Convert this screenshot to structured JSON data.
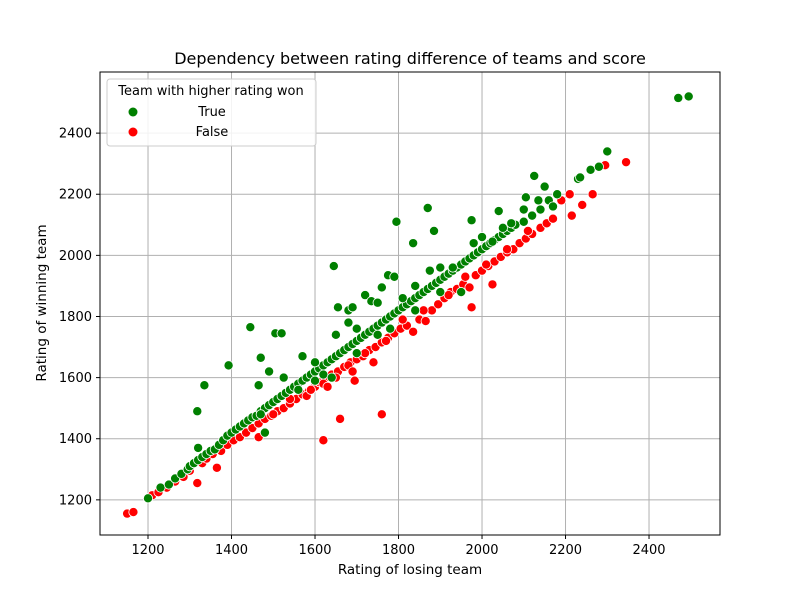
{
  "chart_data": {
    "type": "scatter",
    "title": "Dependency between rating difference of teams and score",
    "xlabel": "Rating of losing team",
    "ylabel": "Rating of winning team",
    "xlim": [
      1085,
      2570
    ],
    "ylim": [
      1085,
      2600
    ],
    "xticks": [
      1200,
      1400,
      1600,
      1800,
      2000,
      2200,
      2400
    ],
    "yticks": [
      1200,
      1400,
      1600,
      1800,
      2000,
      2200,
      2400
    ],
    "grid": true,
    "legend": {
      "title": "Team with higher rating won",
      "placement": "top-left"
    },
    "series": [
      {
        "name": "True",
        "color": "#008000",
        "points": [
          [
            1200,
            1205
          ],
          [
            1230,
            1240
          ],
          [
            1250,
            1250
          ],
          [
            1265,
            1270
          ],
          [
            1280,
            1285
          ],
          [
            1295,
            1300
          ],
          [
            1300,
            1310
          ],
          [
            1310,
            1320
          ],
          [
            1320,
            1330
          ],
          [
            1320,
            1370
          ],
          [
            1330,
            1340
          ],
          [
            1340,
            1350
          ],
          [
            1350,
            1360
          ],
          [
            1360,
            1365
          ],
          [
            1370,
            1380
          ],
          [
            1380,
            1395
          ],
          [
            1390,
            1410
          ],
          [
            1400,
            1420
          ],
          [
            1410,
            1430
          ],
          [
            1420,
            1440
          ],
          [
            1430,
            1450
          ],
          [
            1440,
            1460
          ],
          [
            1450,
            1470
          ],
          [
            1460,
            1475
          ],
          [
            1470,
            1490
          ],
          [
            1480,
            1500
          ],
          [
            1490,
            1510
          ],
          [
            1500,
            1520
          ],
          [
            1510,
            1530
          ],
          [
            1520,
            1540
          ],
          [
            1530,
            1550
          ],
          [
            1540,
            1560
          ],
          [
            1550,
            1570
          ],
          [
            1560,
            1580
          ],
          [
            1570,
            1590
          ],
          [
            1580,
            1600
          ],
          [
            1590,
            1610
          ],
          [
            1600,
            1620
          ],
          [
            1610,
            1630
          ],
          [
            1620,
            1640
          ],
          [
            1630,
            1650
          ],
          [
            1640,
            1660
          ],
          [
            1650,
            1670
          ],
          [
            1660,
            1680
          ],
          [
            1670,
            1690
          ],
          [
            1680,
            1700
          ],
          [
            1690,
            1710
          ],
          [
            1700,
            1720
          ],
          [
            1710,
            1730
          ],
          [
            1720,
            1740
          ],
          [
            1730,
            1750
          ],
          [
            1740,
            1760
          ],
          [
            1750,
            1770
          ],
          [
            1760,
            1780
          ],
          [
            1770,
            1790
          ],
          [
            1780,
            1800
          ],
          [
            1790,
            1810
          ],
          [
            1800,
            1820
          ],
          [
            1810,
            1830
          ],
          [
            1820,
            1840
          ],
          [
            1830,
            1850
          ],
          [
            1840,
            1860
          ],
          [
            1850,
            1870
          ],
          [
            1860,
            1880
          ],
          [
            1870,
            1890
          ],
          [
            1880,
            1900
          ],
          [
            1890,
            1910
          ],
          [
            1900,
            1920
          ],
          [
            1910,
            1930
          ],
          [
            1920,
            1940
          ],
          [
            1930,
            1950
          ],
          [
            1940,
            1960
          ],
          [
            1950,
            1970
          ],
          [
            1960,
            1980
          ],
          [
            1970,
            1990
          ],
          [
            1980,
            2000
          ],
          [
            1990,
            2010
          ],
          [
            2000,
            2020
          ],
          [
            2010,
            2030
          ],
          [
            2020,
            2040
          ],
          [
            2030,
            2050
          ],
          [
            2040,
            2060
          ],
          [
            2050,
            2070
          ],
          [
            2060,
            2080
          ],
          [
            2070,
            2090
          ],
          [
            2080,
            2100
          ],
          [
            2100,
            2110
          ],
          [
            2120,
            2130
          ],
          [
            2140,
            2150
          ],
          [
            2160,
            2180
          ],
          [
            2180,
            2200
          ],
          [
            2230,
            2250
          ],
          [
            2260,
            2280
          ],
          [
            2280,
            2290
          ],
          [
            2300,
            2340
          ],
          [
            2470,
            2515
          ],
          [
            2495,
            2520
          ],
          [
            1318,
            1490
          ],
          [
            1335,
            1575
          ],
          [
            1393,
            1640
          ],
          [
            1445,
            1765
          ],
          [
            1465,
            1575
          ],
          [
            1470,
            1665
          ],
          [
            1490,
            1620
          ],
          [
            1505,
            1745
          ],
          [
            1520,
            1745
          ],
          [
            1525,
            1600
          ],
          [
            1570,
            1670
          ],
          [
            1600,
            1650
          ],
          [
            1645,
            1965
          ],
          [
            1650,
            1740
          ],
          [
            1655,
            1830
          ],
          [
            1680,
            1780
          ],
          [
            1680,
            1820
          ],
          [
            1690,
            1830
          ],
          [
            1700,
            1760
          ],
          [
            1720,
            1870
          ],
          [
            1735,
            1850
          ],
          [
            1750,
            1845
          ],
          [
            1760,
            1895
          ],
          [
            1775,
            1935
          ],
          [
            1790,
            1930
          ],
          [
            1795,
            2110
          ],
          [
            1810,
            1860
          ],
          [
            1835,
            2040
          ],
          [
            1840,
            1900
          ],
          [
            1870,
            2155
          ],
          [
            1875,
            1950
          ],
          [
            1885,
            2080
          ],
          [
            1900,
            1960
          ],
          [
            1930,
            1960
          ],
          [
            1950,
            1880
          ],
          [
            1975,
            2115
          ],
          [
            1980,
            2040
          ],
          [
            2000,
            2060
          ],
          [
            2025,
            2045
          ],
          [
            2040,
            2145
          ],
          [
            2050,
            2090
          ],
          [
            2070,
            2105
          ],
          [
            2100,
            2150
          ],
          [
            2105,
            2190
          ],
          [
            2125,
            2260
          ],
          [
            2135,
            2180
          ],
          [
            2150,
            2225
          ],
          [
            2170,
            2160
          ],
          [
            2235,
            2255
          ],
          [
            1470,
            1480
          ],
          [
            1480,
            1420
          ],
          [
            1560,
            1560
          ],
          [
            1600,
            1590
          ],
          [
            1620,
            1610
          ],
          [
            1640,
            1600
          ],
          [
            1700,
            1680
          ],
          [
            1750,
            1740
          ],
          [
            1780,
            1760
          ],
          [
            1840,
            1820
          ],
          [
            1900,
            1880
          ]
        ]
      },
      {
        "name": "False",
        "color": "#ff0000",
        "points": [
          [
            1150,
            1155
          ],
          [
            1165,
            1160
          ],
          [
            1210,
            1215
          ],
          [
            1225,
            1225
          ],
          [
            1245,
            1240
          ],
          [
            1265,
            1260
          ],
          [
            1285,
            1275
          ],
          [
            1300,
            1295
          ],
          [
            1318,
            1255
          ],
          [
            1330,
            1320
          ],
          [
            1340,
            1335
          ],
          [
            1355,
            1350
          ],
          [
            1365,
            1305
          ],
          [
            1375,
            1360
          ],
          [
            1390,
            1380
          ],
          [
            1405,
            1395
          ],
          [
            1420,
            1405
          ],
          [
            1435,
            1420
          ],
          [
            1450,
            1435
          ],
          [
            1465,
            1405
          ],
          [
            1465,
            1450
          ],
          [
            1480,
            1465
          ],
          [
            1495,
            1475
          ],
          [
            1510,
            1490
          ],
          [
            1525,
            1500
          ],
          [
            1540,
            1515
          ],
          [
            1555,
            1530
          ],
          [
            1570,
            1545
          ],
          [
            1585,
            1555
          ],
          [
            1600,
            1570
          ],
          [
            1610,
            1585
          ],
          [
            1620,
            1395
          ],
          [
            1625,
            1600
          ],
          [
            1640,
            1610
          ],
          [
            1655,
            1620
          ],
          [
            1660,
            1465
          ],
          [
            1670,
            1635
          ],
          [
            1685,
            1650
          ],
          [
            1695,
            1590
          ],
          [
            1700,
            1660
          ],
          [
            1715,
            1670
          ],
          [
            1730,
            1690
          ],
          [
            1745,
            1700
          ],
          [
            1760,
            1480
          ],
          [
            1760,
            1715
          ],
          [
            1775,
            1730
          ],
          [
            1790,
            1745
          ],
          [
            1805,
            1760
          ],
          [
            1820,
            1770
          ],
          [
            1835,
            1750
          ],
          [
            1850,
            1790
          ],
          [
            1865,
            1785
          ],
          [
            1880,
            1820
          ],
          [
            1895,
            1840
          ],
          [
            1910,
            1860
          ],
          [
            1925,
            1880
          ],
          [
            1940,
            1890
          ],
          [
            1955,
            1905
          ],
          [
            1970,
            1895
          ],
          [
            1975,
            1830
          ],
          [
            1985,
            1935
          ],
          [
            2000,
            1950
          ],
          [
            2015,
            1965
          ],
          [
            2025,
            1905
          ],
          [
            2030,
            1980
          ],
          [
            2045,
            1995
          ],
          [
            2060,
            2010
          ],
          [
            2075,
            2020
          ],
          [
            2090,
            2040
          ],
          [
            2105,
            2055
          ],
          [
            2120,
            2070
          ],
          [
            2140,
            2090
          ],
          [
            2155,
            2105
          ],
          [
            2170,
            2120
          ],
          [
            2190,
            2180
          ],
          [
            2210,
            2200
          ],
          [
            2215,
            2130
          ],
          [
            2240,
            2165
          ],
          [
            2265,
            2200
          ],
          [
            2295,
            2295
          ],
          [
            2345,
            2305
          ],
          [
            1500,
            1480
          ],
          [
            1540,
            1530
          ],
          [
            1580,
            1540
          ],
          [
            1620,
            1580
          ],
          [
            1650,
            1600
          ],
          [
            1680,
            1640
          ],
          [
            1720,
            1680
          ],
          [
            1770,
            1720
          ],
          [
            1810,
            1790
          ],
          [
            1860,
            1820
          ],
          [
            1920,
            1870
          ],
          [
            1960,
            1930
          ],
          [
            2010,
            1970
          ],
          [
            2060,
            2020
          ],
          [
            2110,
            2080
          ],
          [
            1590,
            1560
          ],
          [
            1630,
            1570
          ],
          [
            1690,
            1620
          ],
          [
            1740,
            1650
          ]
        ]
      }
    ]
  }
}
